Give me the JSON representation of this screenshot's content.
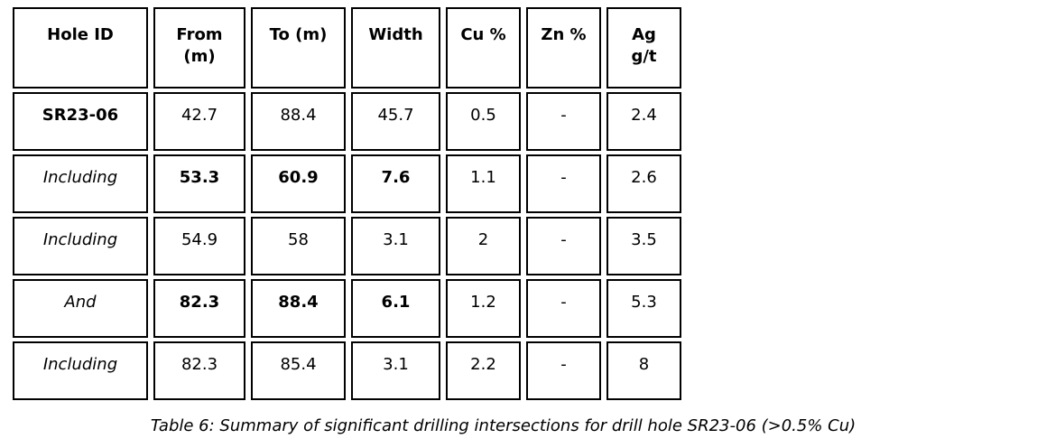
{
  "table": {
    "header": [
      "Hole ID",
      "From\n(m)",
      "To (m)",
      "Width",
      "Cu %",
      "Zn %",
      "Ag\ng/t"
    ],
    "rows": [
      [
        "SR23-06",
        "42.7",
        "88.4",
        "45.7",
        "0.5",
        "-",
        "2.4"
      ],
      [
        "Including",
        "53.3",
        "60.9",
        "7.6",
        "1.1",
        "-",
        "2.6"
      ],
      [
        "Including",
        "54.9",
        "58",
        "3.1",
        "2",
        "-",
        "3.5"
      ],
      [
        "And",
        "82.3",
        "88.4",
        "6.1",
        "1.2",
        "-",
        "5.3"
      ],
      [
        "Including",
        "82.3",
        "85.4",
        "3.1",
        "2.2",
        "-",
        "8"
      ]
    ]
  },
  "caption": "Table 6: Summary of significant drilling intersections for drill hole SR23-06 (>0.5% Cu)",
  "colors": {
    "border": "#000000",
    "text": "#000000",
    "background": "#ffffff"
  }
}
